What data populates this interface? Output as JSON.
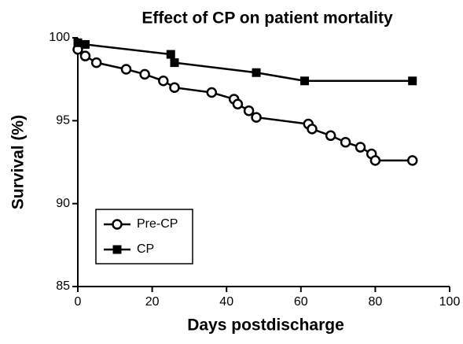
{
  "chart_data": {
    "type": "line",
    "title": "Effect of CP on patient mortality",
    "x_label": "Days postdischarge",
    "y_label": "Survival (%)",
    "xlim": [
      0,
      100
    ],
    "xticks": [
      0,
      20,
      40,
      60,
      80,
      100
    ],
    "ylim": [
      85,
      100
    ],
    "yticks": [
      85,
      90,
      95,
      100
    ],
    "legend": "lower-left",
    "series": [
      {
        "name": "Pre-CP",
        "color": "#000000",
        "marker": "circle",
        "x": [
          0,
          2,
          5,
          13,
          18,
          23,
          26,
          36,
          42,
          43,
          46,
          48,
          62,
          63,
          68,
          72,
          76,
          79,
          80,
          90
        ],
        "values": [
          99.3,
          98.9,
          98.5,
          98.1,
          97.8,
          97.4,
          97.0,
          96.7,
          96.3,
          96.0,
          95.6,
          95.2,
          94.8,
          94.5,
          94.1,
          93.7,
          93.4,
          93.0,
          92.6,
          92.6
        ]
      },
      {
        "name": "CP",
        "color": "#000000",
        "marker": "square",
        "x": [
          0,
          2,
          25,
          26,
          48,
          61,
          90
        ],
        "values": [
          99.7,
          99.6,
          99.0,
          98.5,
          97.9,
          97.4,
          97.4
        ]
      }
    ]
  }
}
